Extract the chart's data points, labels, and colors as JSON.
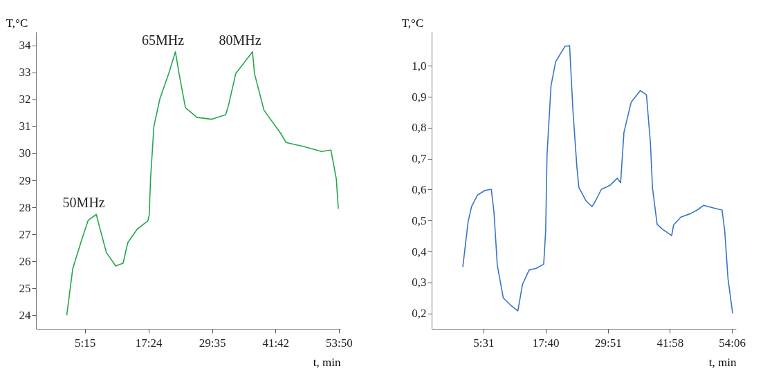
{
  "chart_data": [
    {
      "type": "line",
      "xlabel": "t, min",
      "ylabel": "T,°C",
      "xlim": [
        -4.1,
        54.1
      ],
      "ylim": [
        23.5,
        34.5
      ],
      "xticks": [
        {
          "value": 5.25,
          "label": "5:15"
        },
        {
          "value": 17.4,
          "label": "17:24"
        },
        {
          "value": 29.583,
          "label": "29:35"
        },
        {
          "value": 41.7,
          "label": "41:42"
        },
        {
          "value": 53.833,
          "label": "53:50"
        }
      ],
      "yticks": [
        24,
        25,
        26,
        27,
        28,
        29,
        30,
        31,
        32,
        33,
        34
      ],
      "grid": false,
      "marker": "none",
      "line_style": "solid",
      "annotations": [
        {
          "text": "50MHz",
          "x": 7.43,
          "y": 27.74
        },
        {
          "text": "65MHz",
          "x": 22.56,
          "y": 33.76
        },
        {
          "text": "80MHz",
          "x": 37.3,
          "y": 33.76
        }
      ],
      "series": [
        {
          "color": "#22a84a",
          "x": [
            1.79,
            2.94,
            4.74,
            5.89,
            7.43,
            7.94,
            9.35,
            11.15,
            12.56,
            13.45,
            15.25,
            17.3,
            17.55,
            17.81,
            18.45,
            19.6,
            21.28,
            22.56,
            23.33,
            24.48,
            26.66,
            29.48,
            32.17,
            32.69,
            34.1,
            37.3,
            37.69,
            39.49,
            42.69,
            43.72,
            47.31,
            50.5,
            52.3,
            53.33,
            53.71
          ],
          "values": [
            24.0,
            25.74,
            26.86,
            27.52,
            27.74,
            27.36,
            26.33,
            25.83,
            25.93,
            26.69,
            27.19,
            27.5,
            27.71,
            29.05,
            31.0,
            32.02,
            32.95,
            33.76,
            32.88,
            31.69,
            31.33,
            31.26,
            31.43,
            31.76,
            32.95,
            33.76,
            32.95,
            31.6,
            30.74,
            30.4,
            30.24,
            30.07,
            30.12,
            29.05,
            27.95
          ]
        }
      ]
    },
    {
      "type": "line",
      "xlabel": "t, min",
      "ylabel": "T,°C",
      "xlim": [
        -4.59,
        54.88
      ],
      "ylim": [
        0.15,
        1.11
      ],
      "xticks": [
        {
          "value": 5.517,
          "label": "5:31"
        },
        {
          "value": 17.667,
          "label": "17:40"
        },
        {
          "value": 29.85,
          "label": "29:51"
        },
        {
          "value": 41.967,
          "label": "41:58"
        },
        {
          "value": 54.1,
          "label": "54:06"
        }
      ],
      "yticks": [
        {
          "value": 0.2,
          "label": "0,2"
        },
        {
          "value": 0.3,
          "label": "0,3"
        },
        {
          "value": 0.4,
          "label": "0,4"
        },
        {
          "value": 0.5,
          "label": "0,5"
        },
        {
          "value": 0.6,
          "label": "0,6"
        },
        {
          "value": 0.7,
          "label": "0,7"
        },
        {
          "value": 0.8,
          "label": "0,8"
        },
        {
          "value": 0.9,
          "label": "0,9"
        },
        {
          "value": 1.0,
          "label": "1,0"
        }
      ],
      "grid": false,
      "marker": "none",
      "line_style": "solid",
      "series": [
        {
          "color": "#3a74c8",
          "x": [
            1.5,
            2.54,
            3.2,
            4.35,
            5.78,
            7.07,
            7.59,
            8.24,
            9.4,
            10.83,
            12.25,
            13.16,
            14.45,
            15.88,
            17.3,
            17.69,
            17.95,
            18.73,
            19.63,
            21.45,
            22.36,
            23.0,
            23.78,
            24.17,
            25.6,
            26.76,
            27.41,
            28.57,
            30.26,
            31.68,
            32.33,
            32.98,
            34.4,
            36.2,
            37.38,
            38.16,
            38.55,
            39.46,
            40.36,
            42.3,
            42.69,
            44.1,
            45.93,
            47.3,
            48.52,
            50.6,
            52.15,
            52.67,
            53.32,
            54.22
          ],
          "values": [
            0.35,
            0.497,
            0.545,
            0.582,
            0.597,
            0.601,
            0.526,
            0.355,
            0.25,
            0.227,
            0.208,
            0.294,
            0.34,
            0.346,
            0.359,
            0.467,
            0.712,
            0.935,
            1.013,
            1.063,
            1.065,
            0.86,
            0.674,
            0.607,
            0.563,
            0.545,
            0.563,
            0.601,
            0.614,
            0.637,
            0.622,
            0.785,
            0.883,
            0.92,
            0.906,
            0.749,
            0.607,
            0.488,
            0.474,
            0.451,
            0.486,
            0.511,
            0.522,
            0.534,
            0.549,
            0.54,
            0.534,
            0.467,
            0.311,
            0.2
          ]
        }
      ]
    }
  ]
}
